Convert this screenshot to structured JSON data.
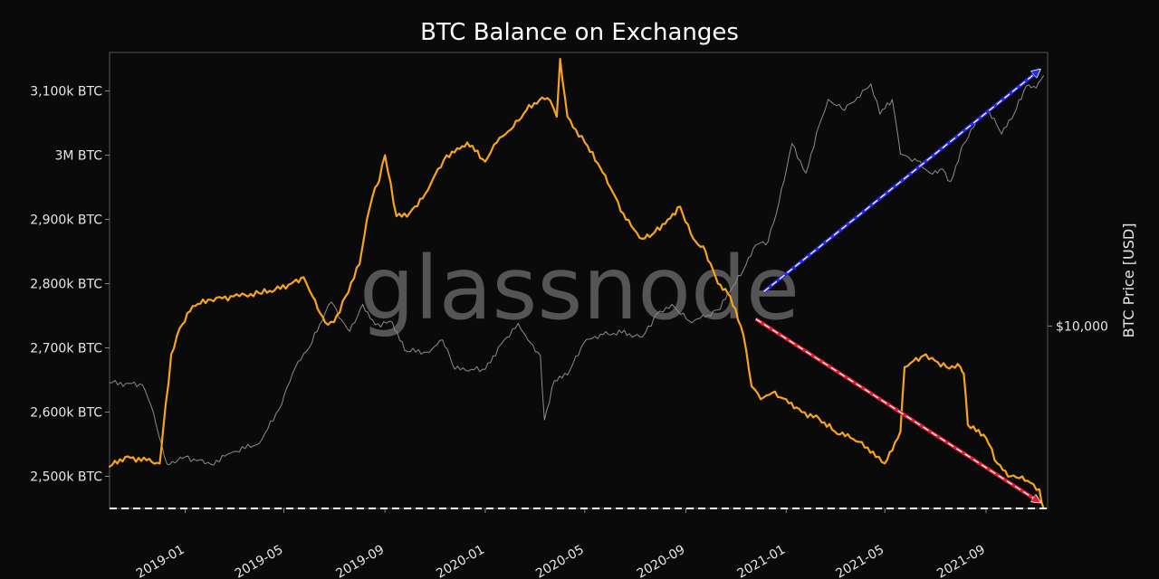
{
  "chart_data": {
    "type": "line",
    "title": "BTC Balance on Exchanges",
    "watermark": "glassnode",
    "y_left": {
      "ylim": [
        2450,
        3160
      ],
      "unit": "k BTC",
      "ticks": [
        {
          "value": 2500,
          "label": "2,500k BTC"
        },
        {
          "value": 2600,
          "label": "2,600k BTC"
        },
        {
          "value": 2700,
          "label": "2,700k BTC"
        },
        {
          "value": 2800,
          "label": "2,800k BTC"
        },
        {
          "value": 2900,
          "label": "2,900k BTC"
        },
        {
          "value": 3000,
          "label": "3M BTC"
        },
        {
          "value": 3100,
          "label": "3,100k BTC"
        }
      ]
    },
    "y_right": {
      "label": "BTC Price [USD]",
      "scale": "log",
      "ylim": [
        2500,
        80000
      ],
      "ticks": [
        {
          "value": 10000,
          "label": "$10,000"
        }
      ]
    },
    "x_axis": {
      "range": [
        "2018-10-01",
        "2021-11-15"
      ],
      "ticks": [
        {
          "date": "2019-01-01",
          "label": "2019-01"
        },
        {
          "date": "2019-05-01",
          "label": "2019-05"
        },
        {
          "date": "2019-09-01",
          "label": "2019-09"
        },
        {
          "date": "2020-01-01",
          "label": "2020-01"
        },
        {
          "date": "2020-05-01",
          "label": "2020-05"
        },
        {
          "date": "2020-09-01",
          "label": "2020-09"
        },
        {
          "date": "2021-01-01",
          "label": "2021-01"
        },
        {
          "date": "2021-05-01",
          "label": "2021-05"
        },
        {
          "date": "2021-09-01",
          "label": "2021-09"
        }
      ]
    },
    "series": [
      {
        "axis": "left",
        "color": "#f7a41d",
        "x": [
          "2018-10-01",
          "2018-10-20",
          "2018-11-15",
          "2018-12-01",
          "2018-12-05",
          "2018-12-15",
          "2018-12-25",
          "2019-01-10",
          "2019-02-01",
          "2019-03-01",
          "2019-04-01",
          "2019-04-20",
          "2019-05-10",
          "2019-05-25",
          "2019-06-05",
          "2019-06-20",
          "2019-07-01",
          "2019-07-15",
          "2019-08-01",
          "2019-08-10",
          "2019-08-20",
          "2019-08-25",
          "2019-09-01",
          "2019-09-15",
          "2019-10-01",
          "2019-10-20",
          "2019-11-01",
          "2019-11-15",
          "2019-12-01",
          "2019-12-10",
          "2020-01-01",
          "2020-01-15",
          "2020-02-01",
          "2020-02-20",
          "2020-03-10",
          "2020-03-20",
          "2020-03-28",
          "2020-04-01",
          "2020-04-10",
          "2020-04-20",
          "2020-05-01",
          "2020-05-20",
          "2020-06-01",
          "2020-06-20",
          "2020-07-10",
          "2020-07-25",
          "2020-08-10",
          "2020-08-25",
          "2020-09-10",
          "2020-09-25",
          "2020-10-10",
          "2020-10-25",
          "2020-11-10",
          "2020-11-20",
          "2020-12-01",
          "2020-12-15",
          "2021-01-01",
          "2021-01-20",
          "2021-02-10",
          "2021-03-01",
          "2021-03-20",
          "2021-04-10",
          "2021-04-20",
          "2021-05-01",
          "2021-05-10",
          "2021-05-20",
          "2021-05-25",
          "2021-06-05",
          "2021-06-20",
          "2021-07-01",
          "2021-07-15",
          "2021-08-01",
          "2021-08-05",
          "2021-08-10",
          "2021-08-20",
          "2021-09-01",
          "2021-09-15",
          "2021-10-01",
          "2021-10-15",
          "2021-10-25",
          "2021-11-05",
          "2021-11-10"
        ],
        "values": [
          2515,
          2530,
          2525,
          2520,
          2570,
          2690,
          2730,
          2765,
          2775,
          2780,
          2785,
          2790,
          2800,
          2810,
          2780,
          2740,
          2740,
          2780,
          2830,
          2900,
          2950,
          2960,
          3000,
          2905,
          2910,
          2940,
          2970,
          3000,
          3010,
          3020,
          2990,
          3020,
          3040,
          3070,
          3090,
          3085,
          3060,
          3150,
          3060,
          3040,
          3020,
          2980,
          2950,
          2900,
          2870,
          2880,
          2900,
          2920,
          2870,
          2850,
          2800,
          2780,
          2720,
          2640,
          2620,
          2630,
          2620,
          2600,
          2590,
          2570,
          2560,
          2545,
          2530,
          2520,
          2540,
          2570,
          2670,
          2680,
          2690,
          2680,
          2670,
          2670,
          2660,
          2580,
          2570,
          2560,
          2520,
          2500,
          2500,
          2490,
          2480,
          2450
        ]
      },
      {
        "axis": "right",
        "color": "#8c8c8c",
        "x": [
          "2018-10-01",
          "2018-11-10",
          "2018-11-20",
          "2018-12-10",
          "2019-01-01",
          "2019-02-01",
          "2019-03-01",
          "2019-04-01",
          "2019-04-25",
          "2019-05-15",
          "2019-06-01",
          "2019-06-20",
          "2019-06-28",
          "2019-07-10",
          "2019-07-20",
          "2019-08-05",
          "2019-08-20",
          "2019-09-10",
          "2019-09-25",
          "2019-10-25",
          "2019-11-10",
          "2019-11-25",
          "2019-12-15",
          "2020-01-01",
          "2020-01-20",
          "2020-02-10",
          "2020-02-25",
          "2020-03-08",
          "2020-03-13",
          "2020-03-25",
          "2020-04-10",
          "2020-04-30",
          "2020-05-20",
          "2020-06-15",
          "2020-07-10",
          "2020-07-28",
          "2020-08-15",
          "2020-09-05",
          "2020-09-25",
          "2020-10-10",
          "2020-10-25",
          "2020-11-10",
          "2020-11-25",
          "2020-12-10",
          "2020-12-20",
          "2021-01-08",
          "2021-01-25",
          "2021-02-10",
          "2021-02-21",
          "2021-03-10",
          "2021-03-25",
          "2021-04-14",
          "2021-04-25",
          "2021-05-10",
          "2021-05-20",
          "2021-06-10",
          "2021-06-25",
          "2021-07-10",
          "2021-07-20",
          "2021-08-05",
          "2021-08-20",
          "2021-09-05",
          "2021-09-20",
          "2021-10-05",
          "2021-10-20",
          "2021-11-01",
          "2021-11-10"
        ],
        "values": [
          6500,
          6400,
          5500,
          3500,
          3700,
          3500,
          3850,
          4100,
          5300,
          7300,
          8500,
          11000,
          12000,
          10500,
          9600,
          11800,
          10100,
          10300,
          8300,
          8200,
          9000,
          7200,
          7200,
          7200,
          8700,
          10200,
          8800,
          8000,
          4900,
          6600,
          6900,
          8800,
          9400,
          9500,
          9200,
          11000,
          11800,
          10400,
          10700,
          11300,
          13000,
          15300,
          18500,
          19000,
          23500,
          40000,
          32000,
          46000,
          56000,
          52000,
          55000,
          63000,
          50000,
          56000,
          37000,
          35000,
          32000,
          33000,
          30000,
          40000,
          47000,
          51000,
          43000,
          50000,
          62000,
          61000,
          67000
        ]
      }
    ],
    "annotations": [
      {
        "type": "hline",
        "axis": "left",
        "y": 2450,
        "color": "#ffffff",
        "dash": true
      },
      {
        "type": "arrow",
        "color": "#2a2ae8",
        "from": {
          "x": "2020-12-05",
          "y_right": 13000
        },
        "to": {
          "x": "2021-11-05",
          "y_right": 70000
        }
      },
      {
        "type": "arrow",
        "color": "#e02030",
        "from": {
          "x": "2020-11-25",
          "axis": "left",
          "y": 2745
        },
        "to": {
          "x": "2021-11-05",
          "axis": "left",
          "y": 2460
        }
      }
    ]
  }
}
